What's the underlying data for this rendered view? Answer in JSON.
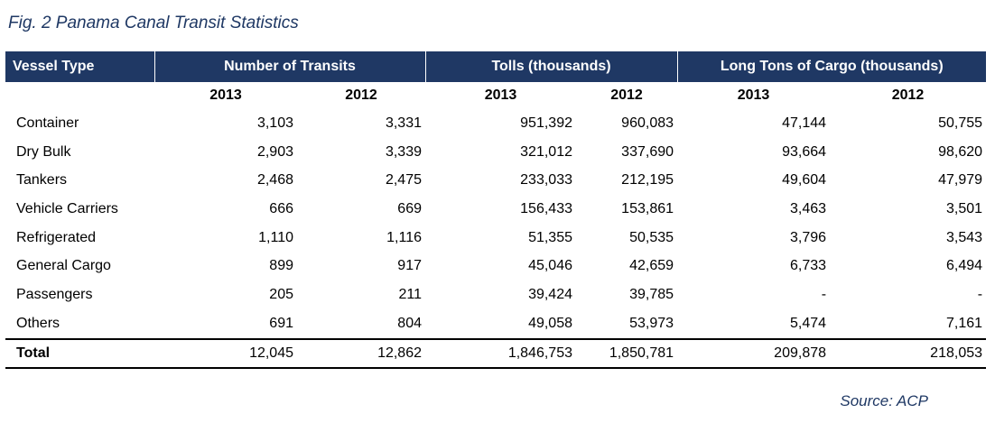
{
  "figure": {
    "title": "Fig. 2 Panama Canal Transit Statistics",
    "source": "Source: ACP"
  },
  "table": {
    "header": {
      "vessel_type": "Vessel Type",
      "groups": [
        "Number of Transits",
        "Tolls (thousands)",
        "Long Tons of Cargo (thousands)"
      ],
      "years": [
        "2013",
        "2012",
        "2013",
        "2012",
        "2013",
        "2012"
      ]
    },
    "rows": [
      {
        "label": "Container",
        "values": [
          "3,103",
          "3,331",
          "951,392",
          "960,083",
          "47,144",
          "50,755"
        ]
      },
      {
        "label": "Dry Bulk",
        "values": [
          "2,903",
          "3,339",
          "321,012",
          "337,690",
          "93,664",
          "98,620"
        ]
      },
      {
        "label": "Tankers",
        "values": [
          "2,468",
          "2,475",
          "233,033",
          "212,195",
          "49,604",
          "47,979"
        ]
      },
      {
        "label": "Vehicle Carriers",
        "values": [
          "666",
          "669",
          "156,433",
          "153,861",
          "3,463",
          "3,501"
        ]
      },
      {
        "label": "Refrigerated",
        "values": [
          "1,110",
          "1,116",
          "51,355",
          "50,535",
          "3,796",
          "3,543"
        ]
      },
      {
        "label": "General Cargo",
        "values": [
          "899",
          "917",
          "45,046",
          "42,659",
          "6,733",
          "6,494"
        ]
      },
      {
        "label": "Passengers",
        "values": [
          "205",
          "211",
          "39,424",
          "39,785",
          "-",
          "-"
        ]
      },
      {
        "label": "Others",
        "values": [
          "691",
          "804",
          "49,058",
          "53,973",
          "5,474",
          "7,161"
        ]
      }
    ],
    "total": {
      "label": "Total",
      "values": [
        "12,045",
        "12,862",
        "1,846,753",
        "1,850,781",
        "209,878",
        "218,053"
      ]
    }
  },
  "colors": {
    "header_bg": "#1f3864",
    "title_text": "#1f3864"
  }
}
